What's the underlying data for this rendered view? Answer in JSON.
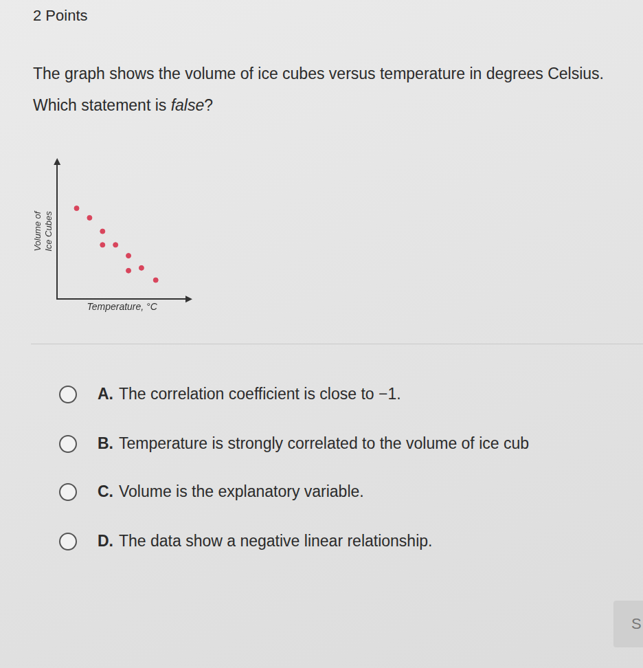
{
  "header": {
    "points": "2 Points"
  },
  "question": {
    "before": "The graph shows the volume of ice cubes versus temperature in degrees Celsius. Which statement is ",
    "emphasis": "false",
    "after": "?"
  },
  "chart_data": {
    "type": "scatter",
    "x_label": "Temperature, °C",
    "y_label": [
      "Volume of",
      "Ice Cubes"
    ],
    "x": [
      1.5,
      2.5,
      3.5,
      3.5,
      4.5,
      5.5,
      5.5,
      6.5,
      7.6
    ],
    "values": [
      6.7,
      6.0,
      5.0,
      4.0,
      4.0,
      3.2,
      2.1,
      2.3,
      1.4
    ],
    "color": "#d8455c",
    "marker": "circle",
    "xlim": [
      0,
      10
    ],
    "ylim": [
      0,
      10
    ],
    "grid": false,
    "tick_labels": false
  },
  "options": [
    {
      "letter": "A.",
      "text": "The correlation coefficient is close to −1."
    },
    {
      "letter": "B.",
      "text": "Temperature is strongly correlated to the volume of ice cub"
    },
    {
      "letter": "C.",
      "text": "Volume is the explanatory variable."
    },
    {
      "letter": "D.",
      "text": "The data show a negative linear relationship."
    }
  ],
  "button": "S"
}
